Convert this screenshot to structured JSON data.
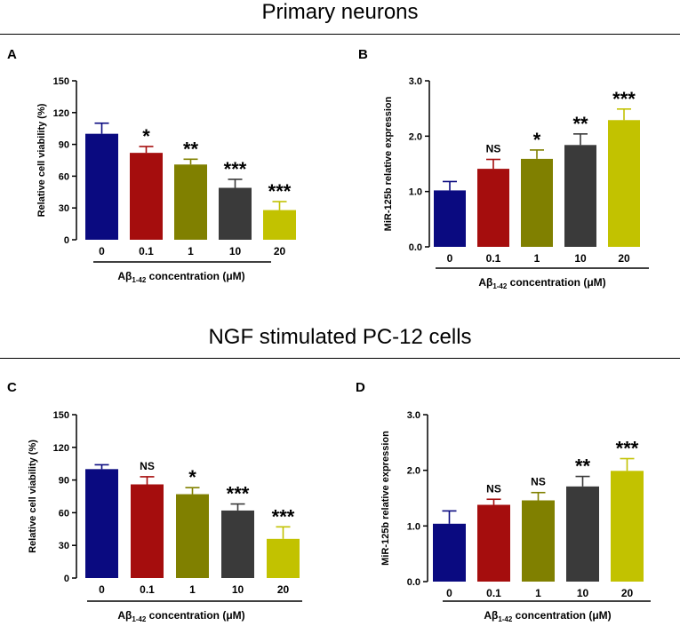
{
  "sections": [
    {
      "title": "Primary neurons"
    },
    {
      "title": "NGF stimulated PC-12 cells"
    }
  ],
  "chart_data": [
    {
      "panel": "A",
      "type": "bar",
      "categories": [
        "0",
        "0.1",
        "1",
        "10",
        "20"
      ],
      "values": [
        100,
        82,
        71,
        49,
        28
      ],
      "errors": [
        10,
        6,
        5,
        8,
        8
      ],
      "significance": [
        "",
        "*",
        "**",
        "***",
        "***"
      ],
      "ylabel": "Relative cell viability (%)",
      "ylim": [
        0,
        150
      ],
      "yticks": [
        "0",
        "30",
        "60",
        "90",
        "120",
        "150"
      ],
      "xlabel_main": "Aβ",
      "xlabel_sub": "1-42",
      "xlabel_rest": " concentration (μM)",
      "colors": [
        "#0a0a80",
        "#a50d0d",
        "#808000",
        "#3a3a3a",
        "#c2c200"
      ]
    },
    {
      "panel": "B",
      "type": "bar",
      "categories": [
        "0",
        "0.1",
        "1",
        "10",
        "20"
      ],
      "values": [
        1.02,
        1.41,
        1.59,
        1.84,
        2.29
      ],
      "errors": [
        0.16,
        0.17,
        0.16,
        0.2,
        0.2
      ],
      "significance": [
        "",
        "NS",
        "*",
        "**",
        "***"
      ],
      "ylabel": "MiR-125b relative expression",
      "ylim": [
        0,
        3.0
      ],
      "yticks": [
        "0.0",
        "1.0",
        "2.0",
        "3.0"
      ],
      "xlabel_main": "Aβ",
      "xlabel_sub": "1-42",
      "xlabel_rest": " concentration (μM)",
      "colors": [
        "#0a0a80",
        "#a50d0d",
        "#808000",
        "#3a3a3a",
        "#c2c200"
      ]
    },
    {
      "panel": "C",
      "type": "bar",
      "categories": [
        "0",
        "0.1",
        "1",
        "10",
        "20"
      ],
      "values": [
        100,
        86,
        77,
        62,
        36
      ],
      "errors": [
        4,
        7,
        6,
        6,
        11
      ],
      "significance": [
        "",
        "NS",
        "*",
        "***",
        "***"
      ],
      "ylabel": "Relative cell viability (%)",
      "ylim": [
        0,
        150
      ],
      "yticks": [
        "0",
        "30",
        "60",
        "90",
        "120",
        "150"
      ],
      "xlabel_main": "Aβ",
      "xlabel_sub": "1-42",
      "xlabel_rest": " concentration (μM)",
      "colors": [
        "#0a0a80",
        "#a50d0d",
        "#808000",
        "#3a3a3a",
        "#c2c200"
      ]
    },
    {
      "panel": "D",
      "type": "bar",
      "categories": [
        "0",
        "0.1",
        "1",
        "10",
        "20"
      ],
      "values": [
        1.04,
        1.38,
        1.46,
        1.71,
        1.99
      ],
      "errors": [
        0.23,
        0.1,
        0.14,
        0.18,
        0.22
      ],
      "significance": [
        "",
        "NS",
        "NS",
        "**",
        "***"
      ],
      "ylabel": "MiR-125b relative expression",
      "ylim": [
        0,
        3.0
      ],
      "yticks": [
        "0.0",
        "1.0",
        "2.0",
        "3.0"
      ],
      "xlabel_main": "Aβ",
      "xlabel_sub": "1-42",
      "xlabel_rest": " concentration (μM)",
      "colors": [
        "#0a0a80",
        "#a50d0d",
        "#808000",
        "#3a3a3a",
        "#c2c200"
      ]
    }
  ]
}
